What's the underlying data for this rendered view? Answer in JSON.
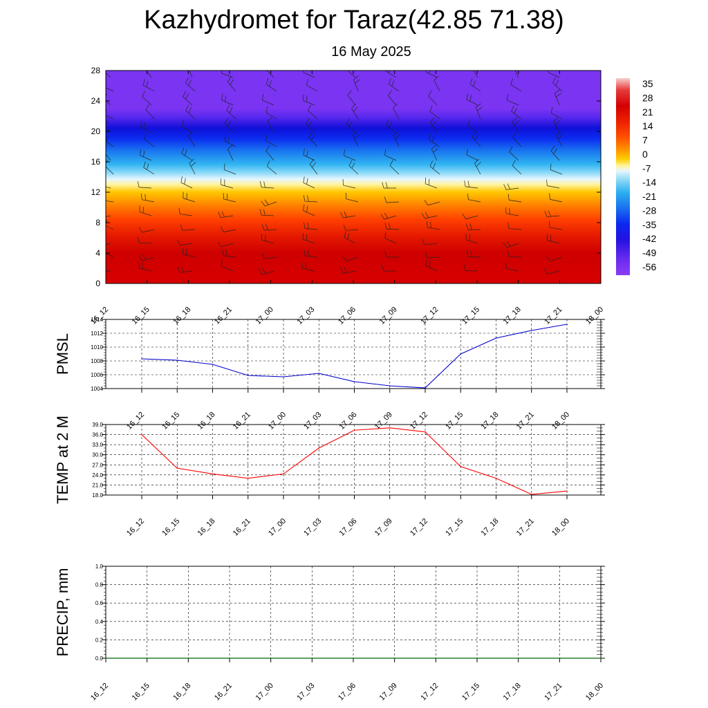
{
  "header": {
    "title": "Kazhydromet for Taraz(42.85 71.38)",
    "subtitle": "16 May 2025"
  },
  "time_labels": [
    "16_12",
    "16_15",
    "16_18",
    "16_21",
    "17_00",
    "17_03",
    "17_06",
    "17_09",
    "17_12",
    "17_15",
    "17_18",
    "17_21",
    "18_00"
  ],
  "chart_data": [
    {
      "type": "heatmap",
      "title": "",
      "xlabel": "",
      "ylabel": "",
      "x": [
        "16_12",
        "16_15",
        "16_18",
        "16_21",
        "17_00",
        "17_03",
        "17_06",
        "17_09",
        "17_12",
        "17_15",
        "17_18",
        "17_21",
        "18_00"
      ],
      "y_ticks": [
        0,
        4,
        8,
        12,
        16,
        20,
        24,
        28
      ],
      "ylim": [
        0,
        28
      ],
      "colorbar_labels": [
        "35",
        "28",
        "21",
        "14",
        "7",
        "0",
        "-7",
        "-14",
        "-21",
        "-28",
        "-35",
        "-42",
        "-49",
        "-56"
      ],
      "colorbar_colors": [
        "#f6c8c8",
        "#e63c3c",
        "#d40000",
        "#e81a00",
        "#ff4a00",
        "#ff8800",
        "#ffc000",
        "#fff08a",
        "#bfe6f6",
        "#4fc4f0",
        "#1c8cf2",
        "#1a3cf2",
        "#1010d8",
        "#7030f0"
      ],
      "note_wind_barbs": true
    },
    {
      "type": "line",
      "ylabel": "PMSL",
      "x": [
        "16_12",
        "16_15",
        "16_18",
        "16_21",
        "17_00",
        "17_03",
        "17_06",
        "17_09",
        "17_12",
        "17_15",
        "17_18",
        "17_21",
        "18_00"
      ],
      "series": [
        {
          "values": [
            1008.3,
            1008.1,
            1007.5,
            1005.9,
            1005.7,
            1006.2,
            1005.0,
            1004.4,
            1004.1,
            1009.0,
            1011.3,
            1012.4,
            1013.3
          ],
          "color": "#0000cc"
        }
      ],
      "y_ticks": [
        "1004",
        "1006",
        "1008",
        "1010",
        "1012",
        "1014"
      ],
      "ylim": [
        1004,
        1014
      ],
      "grid": true
    },
    {
      "type": "line",
      "ylabel": "TEMP at 2 M",
      "x": [
        "16_12",
        "16_15",
        "16_18",
        "16_21",
        "17_00",
        "17_03",
        "17_06",
        "17_09",
        "17_12",
        "17_15",
        "17_18",
        "17_21",
        "18_00"
      ],
      "series": [
        {
          "values": [
            36.0,
            26.0,
            24.3,
            23.0,
            24.3,
            32.0,
            37.3,
            38.0,
            36.8,
            26.5,
            23.0,
            18.2,
            19.2
          ],
          "color": "#ff0000"
        }
      ],
      "y_ticks": [
        "18.0",
        "21.0",
        "24.0",
        "27.0",
        "30.0",
        "33.0",
        "36.0",
        "39.0"
      ],
      "ylim": [
        18,
        39
      ],
      "grid": true
    },
    {
      "type": "bar",
      "ylabel": "PRECIP, mm",
      "x": [
        "16_12",
        "16_15",
        "16_18",
        "16_21",
        "17_00",
        "17_03",
        "17_06",
        "17_09",
        "17_12",
        "17_15",
        "17_18",
        "17_21",
        "18_00"
      ],
      "series": [
        {
          "values": [
            0,
            0,
            0,
            0,
            0,
            0,
            0,
            0,
            0,
            0,
            0,
            0,
            0
          ],
          "color": "#006400"
        }
      ],
      "y_ticks": [
        "0.0",
        "0.2",
        "0.4",
        "0.6",
        "0.8",
        "1.0"
      ],
      "ylim": [
        0,
        1
      ],
      "grid": true
    }
  ]
}
